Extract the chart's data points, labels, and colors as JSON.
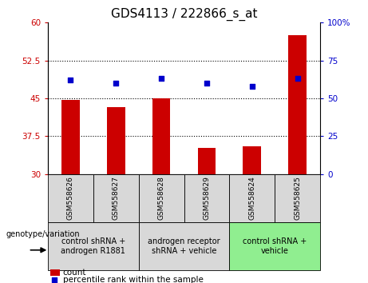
{
  "title": "GDS4113 / 222866_s_at",
  "samples": [
    "GSM558626",
    "GSM558627",
    "GSM558628",
    "GSM558629",
    "GSM558624",
    "GSM558625"
  ],
  "bar_values": [
    44.7,
    43.3,
    45.0,
    35.2,
    35.5,
    57.5
  ],
  "percentile_values": [
    62,
    60,
    63,
    60,
    58,
    63
  ],
  "left_ylim": [
    30,
    60
  ],
  "left_yticks": [
    30,
    37.5,
    45,
    52.5,
    60
  ],
  "left_yticklabels": [
    "30",
    "37.5",
    "45",
    "52.5",
    "60"
  ],
  "right_ylim": [
    0,
    100
  ],
  "right_yticks": [
    0,
    25,
    50,
    75,
    100
  ],
  "right_yticklabels": [
    "0",
    "25",
    "50",
    "75",
    "100%"
  ],
  "bar_color": "#cc0000",
  "percentile_color": "#0000cc",
  "bar_bottom": 30,
  "groups": [
    {
      "label": "control shRNA +\nandrogen R1881",
      "start": 0,
      "end": 1,
      "color": "#d8d8d8"
    },
    {
      "label": "androgen receptor\nshRNA + vehicle",
      "start": 2,
      "end": 3,
      "color": "#d8d8d8"
    },
    {
      "label": "control shRNA +\nvehicle",
      "start": 4,
      "end": 5,
      "color": "#90ee90"
    }
  ],
  "legend_count_label": "count",
  "legend_percentile_label": "percentile rank within the sample",
  "genotype_label": "genotype/variation",
  "title_fontsize": 11,
  "tick_fontsize": 7.5,
  "sample_fontsize": 6.5,
  "group_fontsize": 7,
  "legend_fontsize": 7.5
}
